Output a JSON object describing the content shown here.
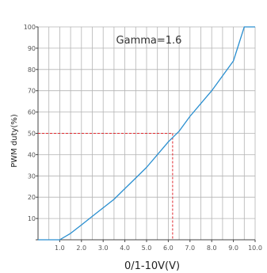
{
  "chart_data": {
    "type": "line",
    "title": "Gamma=1.6",
    "xlabel": "0/1-10V(V)",
    "ylabel": "PWM duty(%)",
    "xlim": [
      0,
      10
    ],
    "ylim": [
      0,
      100
    ],
    "grid": true,
    "x_ticks": [
      1.0,
      2.0,
      3.0,
      4.0,
      5.0,
      6.0,
      7.0,
      8.0,
      9.0,
      10.0
    ],
    "x_tick_labels": [
      "1.0",
      "2.0",
      "3.0",
      "4.0",
      "5.0",
      "6.0",
      "7.0",
      "8.0",
      "9.0",
      "10.0"
    ],
    "y_ticks": [
      10,
      20,
      30,
      40,
      50,
      60,
      70,
      80,
      90,
      100
    ],
    "y_tick_labels": [
      "10",
      "20",
      "30",
      "40",
      "50",
      "60",
      "70",
      "80",
      "90",
      "100"
    ],
    "series": [
      {
        "color": "#2a8fd0",
        "x": [
          0,
          1.0,
          1.5,
          2.0,
          2.5,
          3.0,
          3.5,
          4.0,
          4.5,
          5.0,
          5.5,
          6.0,
          6.5,
          7.0,
          7.5,
          8.0,
          8.5,
          9.0,
          9.5,
          10.0
        ],
        "y": [
          0,
          0,
          3,
          7,
          11,
          15,
          19,
          24,
          29,
          34,
          40,
          46,
          51,
          58,
          64,
          70,
          77,
          84,
          100,
          100
        ]
      }
    ],
    "annotation": {
      "x": 6.2,
      "y": 50,
      "color": "#e0282e"
    }
  }
}
